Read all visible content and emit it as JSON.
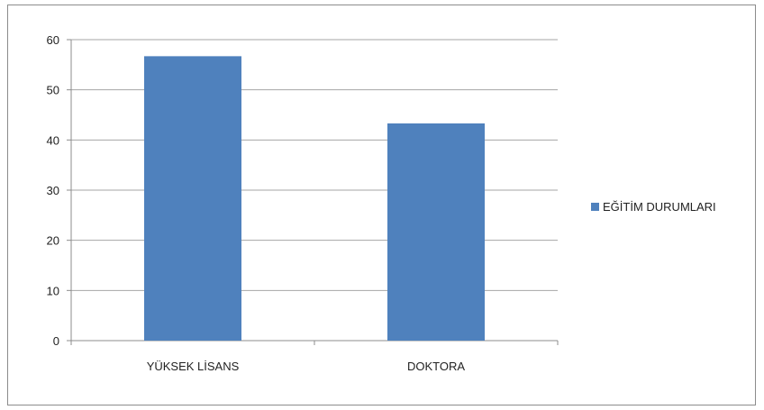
{
  "chart_data": {
    "type": "bar",
    "categories": [
      "YÜKSEK LİSANS",
      "DOKTORA"
    ],
    "series": [
      {
        "name": "EĞİTİM DURUMLARI",
        "values": [
          56.7,
          43.3
        ],
        "color": "#4F81BD"
      }
    ],
    "title": "",
    "xlabel": "",
    "ylabel": "",
    "ylim": [
      0,
      60
    ],
    "yticks": [
      "0",
      "10",
      "20",
      "30",
      "40",
      "50",
      "60"
    ],
    "grid": true,
    "legend_position": "right"
  }
}
